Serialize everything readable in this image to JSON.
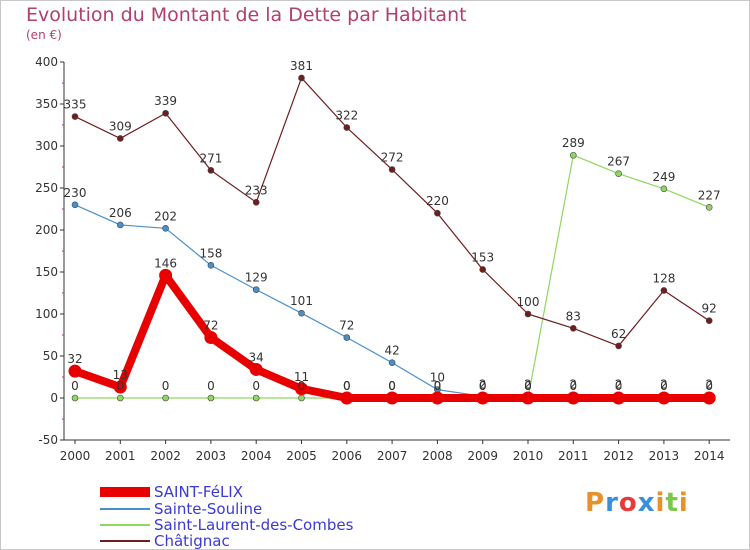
{
  "header": {
    "title": "Evolution du Montant de la Dette par Habitant",
    "subtitle": "(en €)"
  },
  "logo": {
    "text": "Proxiti",
    "colors": [
      "#e8902a",
      "#3a8fd8",
      "#e83a3a",
      "#3a8fd8",
      "#e8902a",
      "#7cc84a",
      "#e8902a"
    ]
  },
  "chart_data": {
    "type": "line",
    "title": "Evolution du Montant de la Dette par Habitant",
    "subtitle": "(en €)",
    "xlabel": "",
    "ylabel": "",
    "x": [
      "2000",
      "2001",
      "2002",
      "2003",
      "2004",
      "2005",
      "2006",
      "2007",
      "2008",
      "2009",
      "2010",
      "2011",
      "2012",
      "2013",
      "2014"
    ],
    "ylim": [
      -50,
      400
    ],
    "yticks": [
      -50,
      0,
      50,
      100,
      150,
      200,
      250,
      300,
      350,
      400
    ],
    "grid": false,
    "legend_position": "bottom-left",
    "series": [
      {
        "name": "SAINT-FéLIX",
        "color": "#e80000",
        "values": [
          32,
          13,
          146,
          72,
          34,
          11,
          0,
          0,
          0,
          0,
          0,
          0,
          0,
          0,
          0
        ],
        "labels": [
          "32",
          "13",
          "146",
          "72",
          "34",
          "11",
          "0",
          "0",
          "0",
          "0",
          "0",
          "0",
          "0",
          "0",
          "0"
        ]
      },
      {
        "name": "Sainte-Souline",
        "color": "#4a8fc8",
        "values": [
          230,
          206,
          202,
          158,
          129,
          101,
          72,
          42,
          10,
          2,
          2,
          2,
          2,
          2,
          2
        ],
        "labels": [
          "230",
          "206",
          "202",
          "158",
          "129",
          "101",
          "72",
          "42",
          "10",
          "2",
          "2",
          "2",
          "2",
          "2",
          "2"
        ]
      },
      {
        "name": "Saint-Laurent-des-Combes",
        "color": "#8ed860",
        "values": [
          0,
          0,
          0,
          0,
          0,
          0,
          0,
          0,
          0,
          0,
          0,
          289,
          267,
          249,
          227
        ],
        "labels": [
          "0",
          "0",
          "0",
          "0",
          "0",
          "0",
          "0",
          "0",
          "0",
          "0",
          "0",
          "289",
          "267",
          "249",
          "227"
        ]
      },
      {
        "name": "Châtignac",
        "color": "#6e1e1e",
        "values": [
          335,
          309,
          339,
          271,
          233,
          381,
          322,
          272,
          220,
          153,
          100,
          83,
          62,
          128,
          92
        ],
        "labels": [
          "335",
          "309",
          "339",
          "271",
          "233",
          "381",
          "322",
          "272",
          "220",
          "153",
          "100",
          "83",
          "62",
          "128",
          "92"
        ]
      }
    ]
  }
}
